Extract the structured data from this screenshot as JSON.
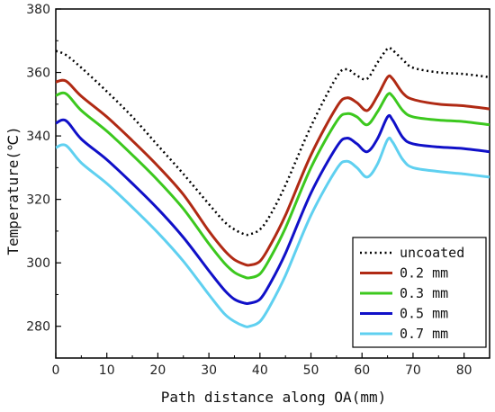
{
  "chart_data": {
    "type": "line",
    "xlabel": "Path distance along OA(mm)",
    "ylabel": "Temperature(℃)",
    "xlim": [
      0,
      85
    ],
    "ylim": [
      270,
      380
    ],
    "x_ticks": [
      "0",
      "10",
      "20",
      "30",
      "40",
      "50",
      "60",
      "70",
      "80"
    ],
    "y_ticks": [
      "280",
      "300",
      "320",
      "340",
      "360",
      "380"
    ],
    "legend_position": "bottom-right",
    "x": [
      0,
      2,
      5,
      10,
      15,
      20,
      25,
      30,
      33,
      35,
      37,
      38,
      40,
      42,
      45,
      50,
      55,
      57,
      59,
      61,
      63,
      65,
      66,
      68,
      70,
      75,
      80,
      85
    ],
    "series": [
      {
        "name": "uncoated",
        "color": "#000000",
        "style": "dotted",
        "values": [
          366.8,
          365.5,
          361.5,
          354.0,
          346.0,
          337.0,
          328.0,
          318.5,
          313.0,
          310.5,
          309.0,
          309.0,
          310.5,
          315.0,
          324.5,
          343.0,
          358.5,
          361.0,
          359.0,
          358.0,
          363.0,
          367.5,
          367.0,
          364.0,
          361.5,
          360.0,
          359.5,
          358.5
        ]
      },
      {
        "name": "0.2 mm",
        "color": "#b02a14",
        "style": "solid",
        "values": [
          357.0,
          357.3,
          352.5,
          346.0,
          338.5,
          330.5,
          321.5,
          310.0,
          304.0,
          301.0,
          299.5,
          299.3,
          300.5,
          305.5,
          315.0,
          334.0,
          349.0,
          352.0,
          350.5,
          348.0,
          352.5,
          358.5,
          358.0,
          353.5,
          351.5,
          350.0,
          349.5,
          348.5
        ]
      },
      {
        "name": "0.3 mm",
        "color": "#3cc81e",
        "style": "solid",
        "values": [
          352.7,
          353.3,
          348.0,
          341.5,
          334.0,
          326.0,
          317.0,
          306.0,
          300.0,
          297.0,
          295.5,
          295.3,
          296.5,
          301.5,
          311.0,
          330.0,
          344.5,
          347.0,
          346.0,
          343.5,
          347.5,
          353.0,
          352.5,
          348.0,
          346.0,
          345.0,
          344.5,
          343.5
        ]
      },
      {
        "name": "0.5 mm",
        "color": "#1010c8",
        "style": "solid",
        "values": [
          344.0,
          344.8,
          339.0,
          332.5,
          325.0,
          317.0,
          308.0,
          297.5,
          291.5,
          288.5,
          287.3,
          287.3,
          288.5,
          293.5,
          303.0,
          322.0,
          336.5,
          339.3,
          337.5,
          335.0,
          339.0,
          346.0,
          345.0,
          339.5,
          337.5,
          336.5,
          336.0,
          335.0
        ]
      },
      {
        "name": "0.7 mm",
        "color": "#5fd0f0",
        "style": "solid",
        "values": [
          336.3,
          337.0,
          331.5,
          325.0,
          317.5,
          309.5,
          300.5,
          290.0,
          284.0,
          281.5,
          280.0,
          280.0,
          281.5,
          286.5,
          296.0,
          315.0,
          329.5,
          332.0,
          330.0,
          327.0,
          331.0,
          338.8,
          338.0,
          332.5,
          330.0,
          328.8,
          328.0,
          327.0
        ]
      }
    ]
  }
}
